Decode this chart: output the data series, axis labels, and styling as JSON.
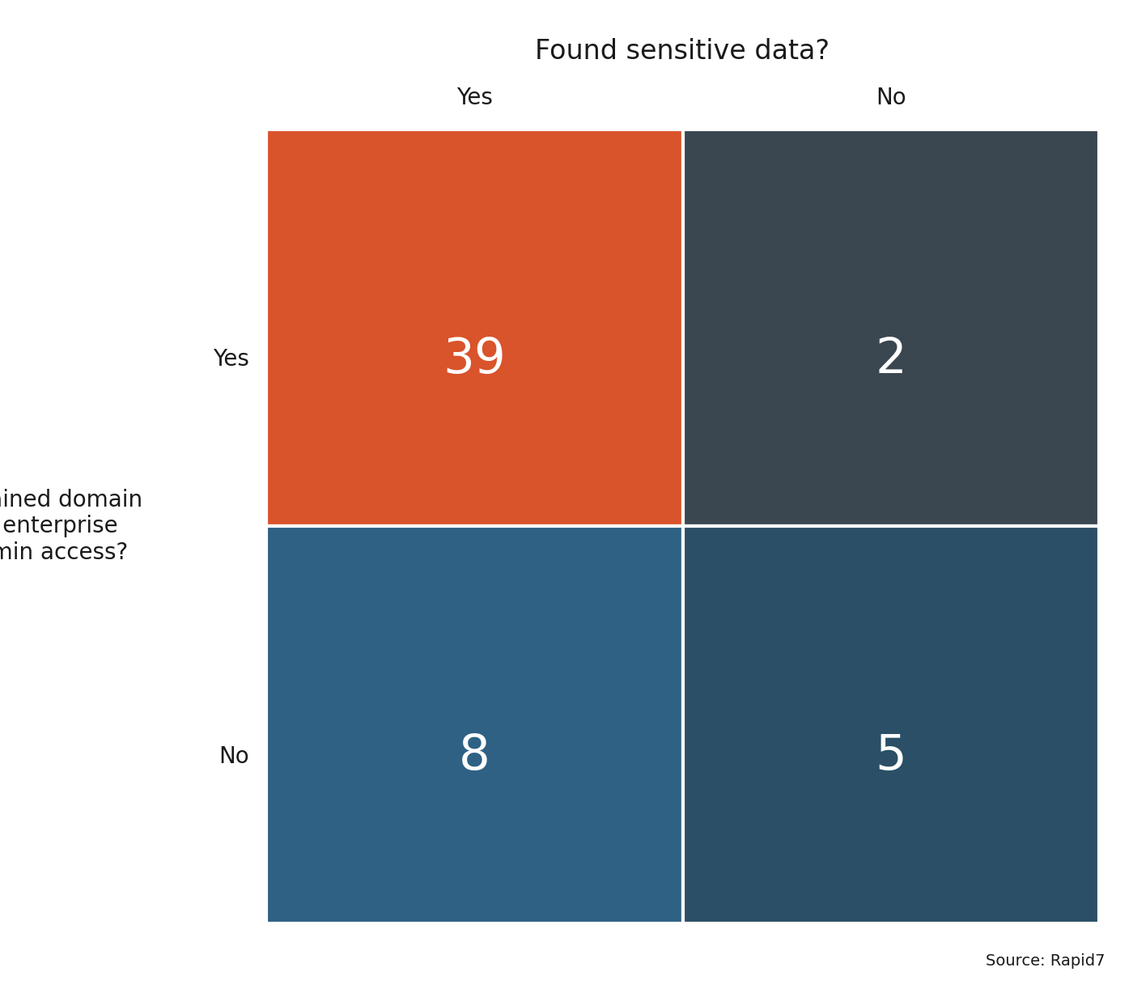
{
  "title": "Found sensitive data?",
  "col_labels": [
    "Yes",
    "No"
  ],
  "row_labels": [
    "Yes",
    "No"
  ],
  "ylabel": "Obtained domain\nor enterprise\nadmin access?",
  "values": [
    [
      39,
      2
    ],
    [
      8,
      5
    ]
  ],
  "colors": [
    [
      "#D9532B",
      "#3A4650"
    ],
    [
      "#2E6184",
      "#2A4F66"
    ]
  ],
  "text_color": "#FFFFFF",
  "label_color": "#1a1a1a",
  "source_text": "Source: Rapid7",
  "background_color": "#FFFFFF",
  "value_fontsize": 44,
  "label_fontsize": 20,
  "title_fontsize": 24,
  "source_fontsize": 14
}
